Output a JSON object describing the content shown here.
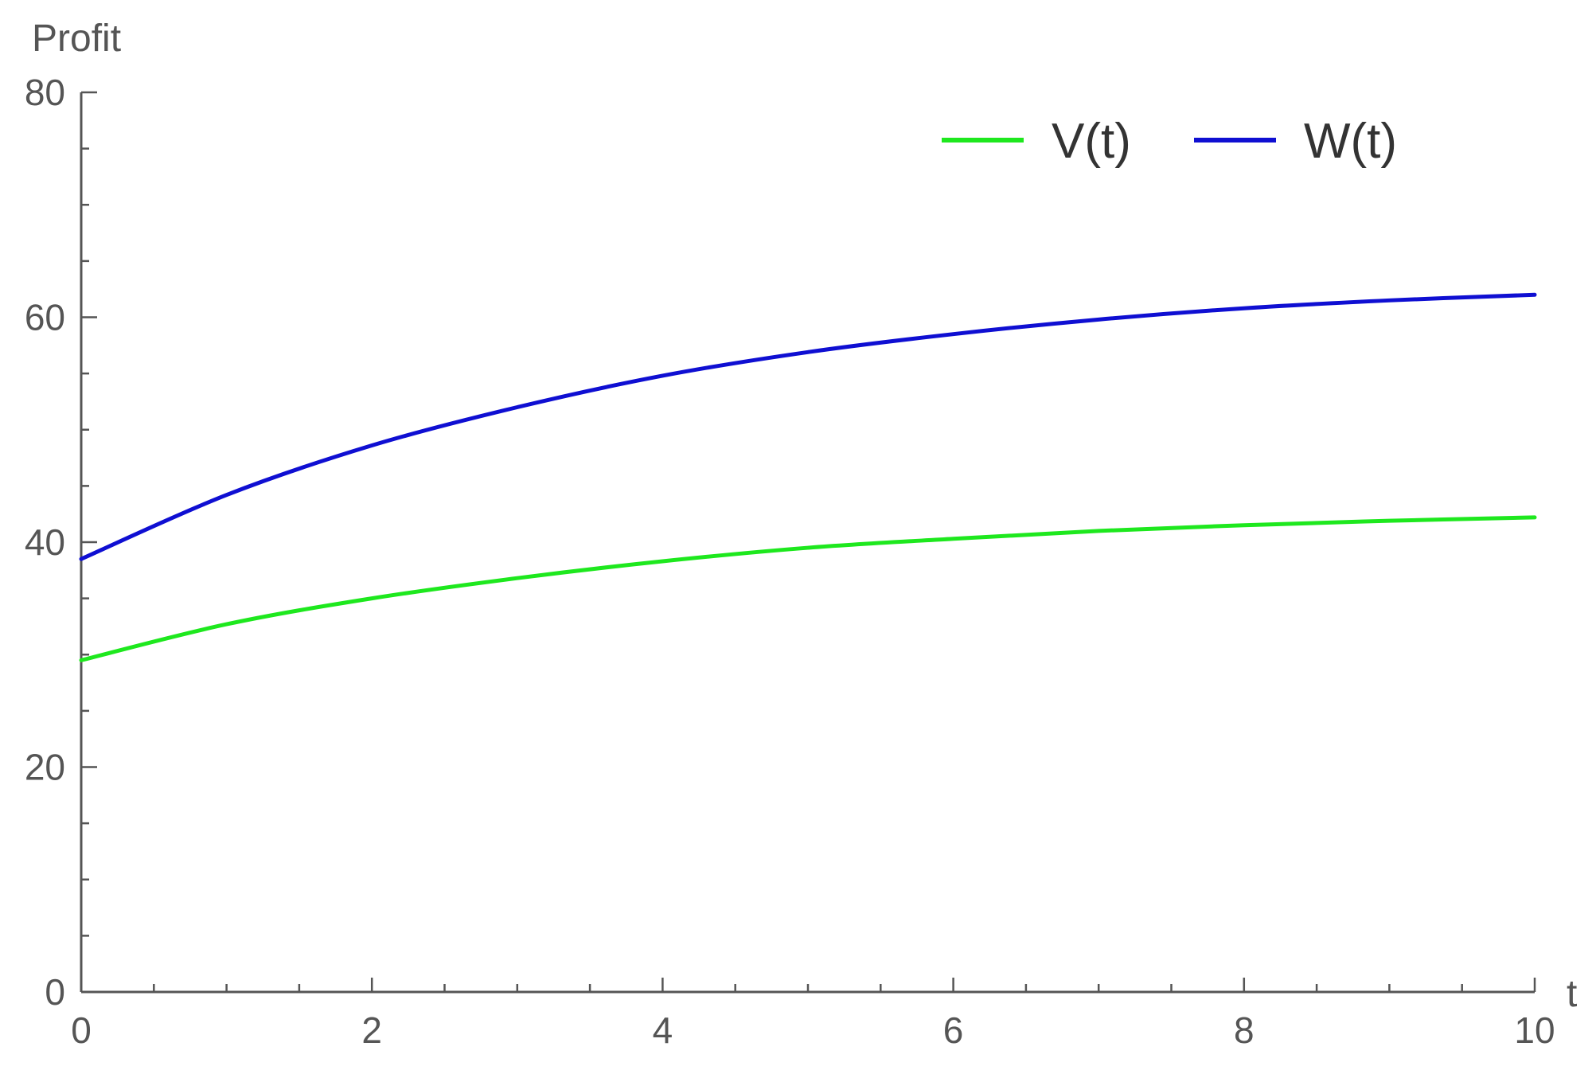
{
  "chart_data": {
    "type": "line",
    "title": "",
    "xlabel": "t",
    "ylabel": "Profit",
    "xlim": [
      0,
      10
    ],
    "ylim": [
      0,
      80
    ],
    "x_major_ticks": [
      0,
      2,
      4,
      6,
      8,
      10
    ],
    "x_minor_step": 0.5,
    "y_major_ticks": [
      0,
      20,
      40,
      60,
      80
    ],
    "y_minor_step": 5,
    "grid": false,
    "legend_position": "top-right",
    "x": [
      0,
      1,
      2,
      3,
      4,
      5,
      6,
      7,
      8,
      9,
      10
    ],
    "series": [
      {
        "name": "V(t)",
        "color": "#1ee81e",
        "values": [
          29.5,
          32.7,
          35.0,
          36.8,
          38.3,
          39.5,
          40.3,
          41.0,
          41.5,
          41.9,
          42.2
        ]
      },
      {
        "name": "W(t)",
        "color": "#0f0fd2",
        "values": [
          38.5,
          44.2,
          48.6,
          52.0,
          54.8,
          56.9,
          58.5,
          59.8,
          60.8,
          61.5,
          62.0
        ]
      }
    ]
  }
}
